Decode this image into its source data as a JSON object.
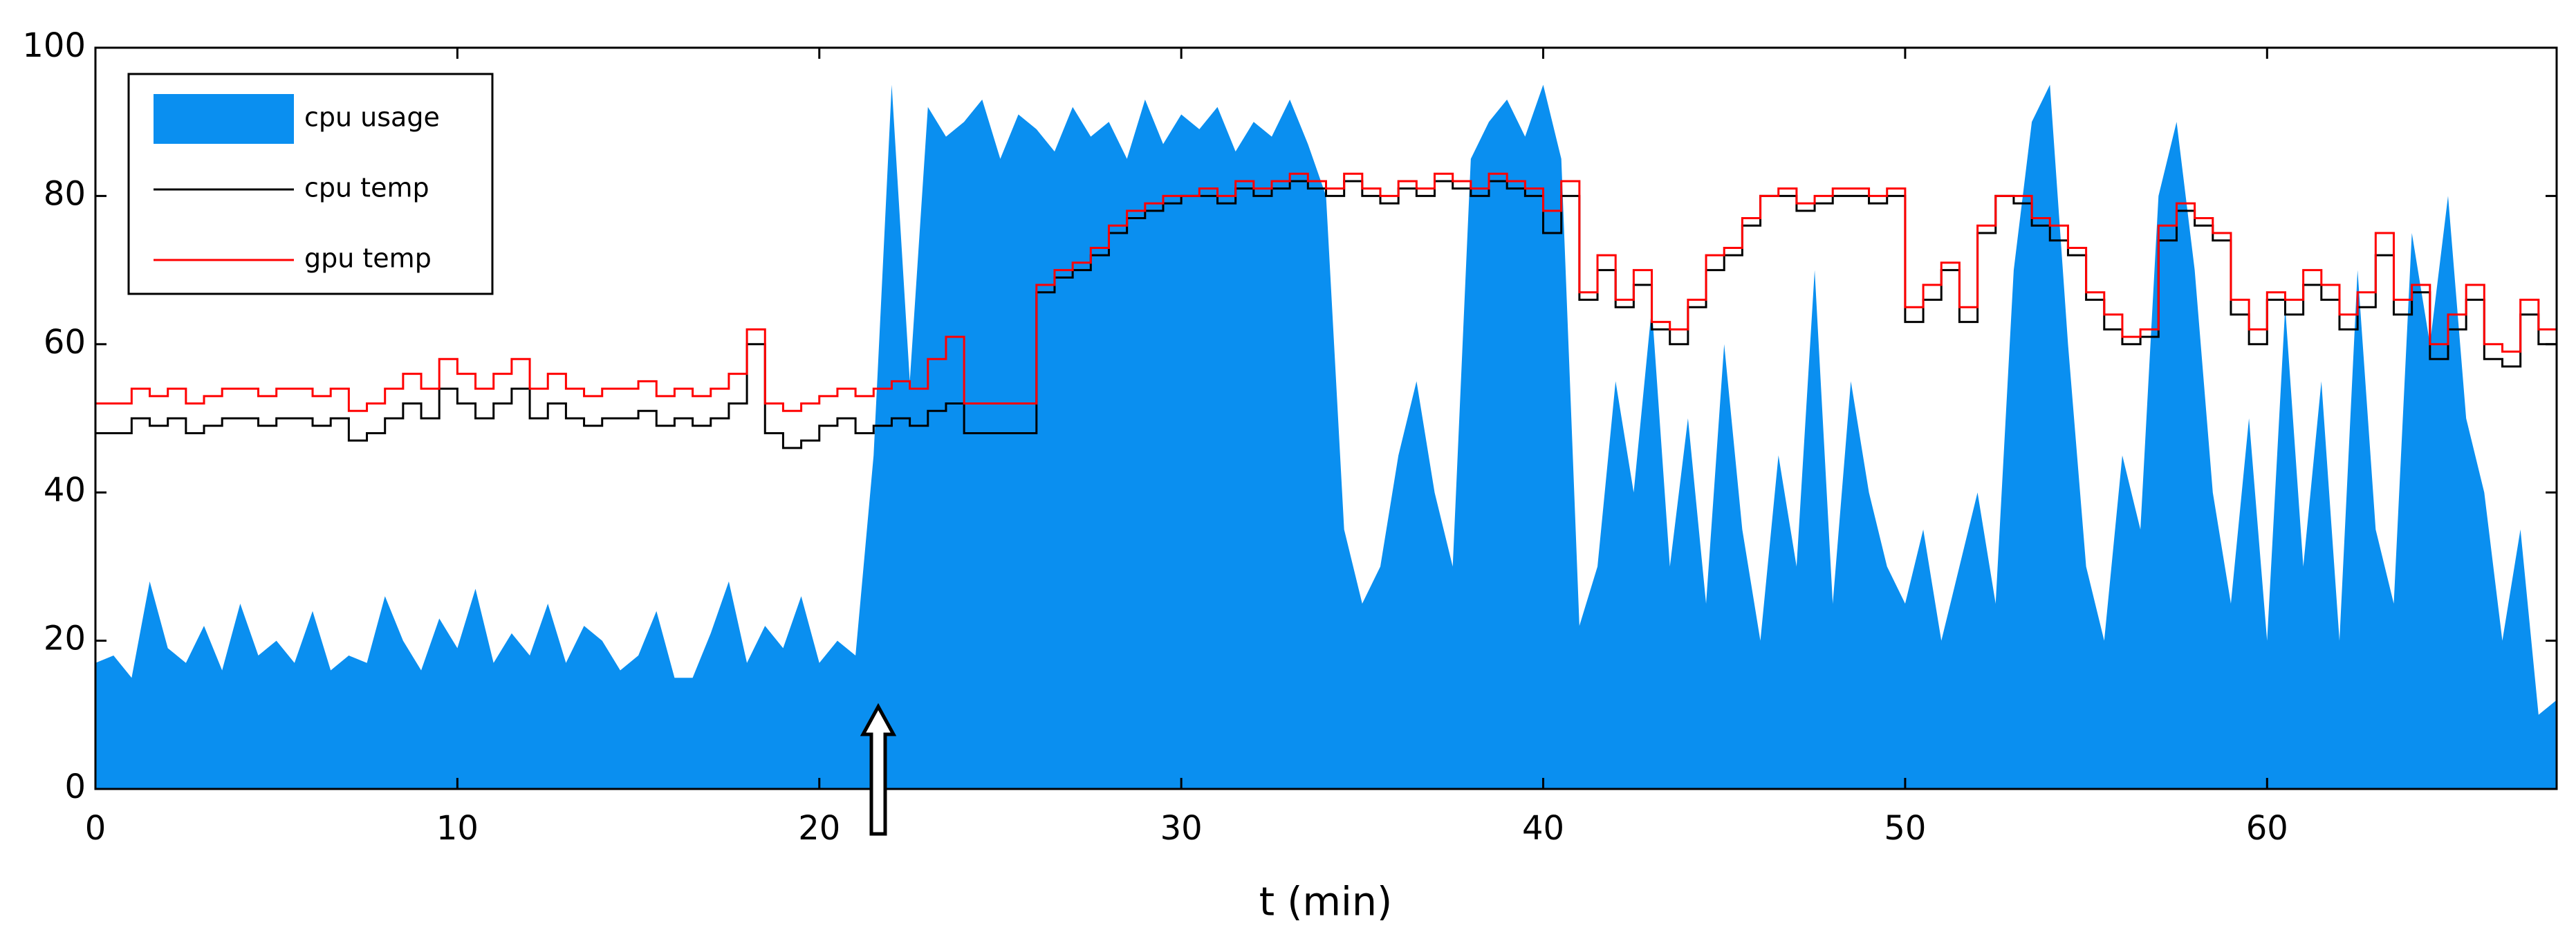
{
  "chart_data": {
    "type": "line",
    "xlabel": "t (min)",
    "x": [
      0,
      0.5,
      1,
      1.5,
      2,
      2.5,
      3,
      3.5,
      4,
      4.5,
      5,
      5.5,
      6,
      6.5,
      7,
      7.5,
      8,
      8.5,
      9,
      9.5,
      10,
      10.5,
      11,
      11.5,
      12,
      12.5,
      13,
      13.5,
      14,
      14.5,
      15,
      15.5,
      16,
      16.5,
      17,
      17.5,
      18,
      18.5,
      19,
      19.5,
      20,
      20.5,
      21,
      21.5,
      22,
      22.5,
      23,
      23.5,
      24,
      24.5,
      25,
      25.5,
      26,
      26.5,
      27,
      27.5,
      28,
      28.5,
      29,
      29.5,
      30,
      30.5,
      31,
      31.5,
      32,
      32.5,
      33,
      33.5,
      34,
      34.5,
      35,
      35.5,
      36,
      36.5,
      37,
      37.5,
      38,
      38.5,
      39,
      39.5,
      40,
      40.5,
      41,
      41.5,
      42,
      42.5,
      43,
      43.5,
      44,
      44.5,
      45,
      45.5,
      46,
      46.5,
      47,
      47.5,
      48,
      48.5,
      49,
      49.5,
      50,
      50.5,
      51,
      51.5,
      52,
      52.5,
      53,
      53.5,
      54,
      54.5,
      55,
      55.5,
      56,
      56.5,
      57,
      57.5,
      58,
      58.5,
      59,
      59.5,
      60,
      60.5,
      61,
      61.5,
      62,
      62.5,
      63,
      63.5,
      64,
      64.5,
      65,
      65.5,
      66,
      66.5,
      67,
      67.5,
      68
    ],
    "series": [
      {
        "name": "cpu usage",
        "style": "area",
        "color": "#0a8ff0",
        "values": [
          17,
          18,
          15,
          28,
          19,
          17,
          22,
          16,
          25,
          18,
          20,
          17,
          24,
          16,
          18,
          17,
          26,
          20,
          16,
          23,
          19,
          27,
          17,
          21,
          18,
          25,
          17,
          22,
          20,
          16,
          18,
          24,
          15,
          15,
          21,
          28,
          17,
          22,
          19,
          26,
          17,
          20,
          18,
          45,
          95,
          55,
          92,
          88,
          90,
          93,
          85,
          91,
          89,
          86,
          92,
          88,
          90,
          85,
          93,
          87,
          91,
          89,
          92,
          86,
          90,
          88,
          93,
          87,
          80,
          35,
          25,
          30,
          45,
          55,
          40,
          30,
          85,
          90,
          93,
          88,
          95,
          85,
          22,
          30,
          55,
          40,
          65,
          30,
          50,
          25,
          60,
          35,
          20,
          45,
          30,
          70,
          25,
          55,
          40,
          30,
          25,
          35,
          20,
          30,
          40,
          25,
          70,
          90,
          95,
          60,
          30,
          20,
          45,
          35,
          80,
          90,
          70,
          40,
          25,
          50,
          20,
          65,
          30,
          55,
          20,
          70,
          35,
          25,
          75,
          60,
          80,
          50,
          40,
          20,
          35,
          10,
          12
        ]
      },
      {
        "name": "cpu temp",
        "style": "step",
        "color": "#000000",
        "values": [
          48,
          48,
          50,
          49,
          50,
          48,
          49,
          50,
          50,
          49,
          50,
          50,
          49,
          50,
          47,
          48,
          50,
          52,
          50,
          54,
          52,
          50,
          52,
          54,
          50,
          52,
          50,
          49,
          50,
          50,
          51,
          49,
          50,
          49,
          50,
          52,
          60,
          48,
          46,
          47,
          49,
          50,
          48,
          49,
          50,
          49,
          51,
          52,
          48,
          48,
          48,
          48,
          67,
          69,
          70,
          72,
          75,
          77,
          78,
          79,
          80,
          80,
          79,
          81,
          80,
          81,
          82,
          81,
          80,
          82,
          80,
          79,
          81,
          80,
          82,
          81,
          80,
          82,
          81,
          80,
          75,
          80,
          66,
          70,
          65,
          68,
          62,
          60,
          65,
          70,
          72,
          76,
          80,
          80,
          78,
          79,
          80,
          80,
          79,
          80,
          63,
          66,
          70,
          63,
          75,
          80,
          79,
          76,
          74,
          72,
          66,
          62,
          60,
          61,
          74,
          78,
          76,
          74,
          64,
          60,
          66,
          64,
          68,
          66,
          62,
          65,
          72,
          64,
          67,
          58,
          62,
          66,
          58,
          57,
          64,
          60,
          57
        ]
      },
      {
        "name": "gpu temp",
        "style": "step",
        "color": "#ff0000",
        "values": [
          52,
          52,
          54,
          53,
          54,
          52,
          53,
          54,
          54,
          53,
          54,
          54,
          53,
          54,
          51,
          52,
          54,
          56,
          54,
          58,
          56,
          54,
          56,
          58,
          54,
          56,
          54,
          53,
          54,
          54,
          55,
          53,
          54,
          53,
          54,
          56,
          62,
          52,
          51,
          52,
          53,
          54,
          53,
          54,
          55,
          54,
          58,
          61,
          52,
          52,
          52,
          52,
          68,
          70,
          71,
          73,
          76,
          78,
          79,
          80,
          80,
          81,
          80,
          82,
          81,
          82,
          83,
          82,
          81,
          83,
          81,
          80,
          82,
          81,
          83,
          82,
          81,
          83,
          82,
          81,
          78,
          82,
          67,
          72,
          66,
          70,
          63,
          62,
          66,
          72,
          73,
          77,
          80,
          81,
          79,
          80,
          81,
          81,
          80,
          81,
          65,
          68,
          71,
          65,
          76,
          80,
          80,
          77,
          76,
          73,
          67,
          64,
          61,
          62,
          76,
          79,
          77,
          75,
          66,
          62,
          67,
          66,
          70,
          68,
          64,
          67,
          75,
          66,
          68,
          60,
          64,
          68,
          60,
          59,
          66,
          62,
          59
        ]
      }
    ],
    "xlim": [
      0,
      68
    ],
    "ylim": [
      0,
      100
    ],
    "xticks": [
      0,
      10,
      20,
      30,
      40,
      50,
      60
    ],
    "yticks": [
      0,
      20,
      40,
      60,
      80,
      100
    ],
    "legend": "upper left"
  }
}
